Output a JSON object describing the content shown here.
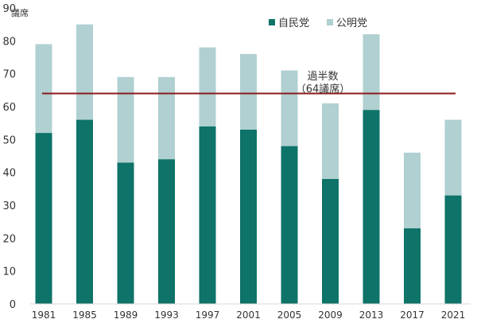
{
  "chart_data": {
    "type": "bar",
    "stacked": true,
    "title": "",
    "xlabel": "",
    "ylabel": "議席",
    "ylim": [
      0,
      90
    ],
    "yticks": [
      0,
      10,
      20,
      30,
      40,
      50,
      60,
      70,
      80,
      90
    ],
    "categories": [
      "1981",
      "1985",
      "1989",
      "1993",
      "1997",
      "2001",
      "2005",
      "2009",
      "2013",
      "2017",
      "2021"
    ],
    "series": [
      {
        "name": "自民党",
        "color": "#0e7369",
        "values": [
          52,
          56,
          43,
          44,
          54,
          53,
          48,
          38,
          59,
          23,
          33
        ]
      },
      {
        "name": "公明党",
        "color": "#b0d0d1",
        "values": [
          27,
          29,
          26,
          25,
          24,
          23,
          23,
          23,
          23,
          23,
          23
        ]
      }
    ],
    "legend_position": "top-right",
    "reference_line": {
      "value": 64,
      "color": "#8b1a1a",
      "label_line1": "過半数",
      "label_line2": "（64議席）"
    },
    "grid": false
  }
}
